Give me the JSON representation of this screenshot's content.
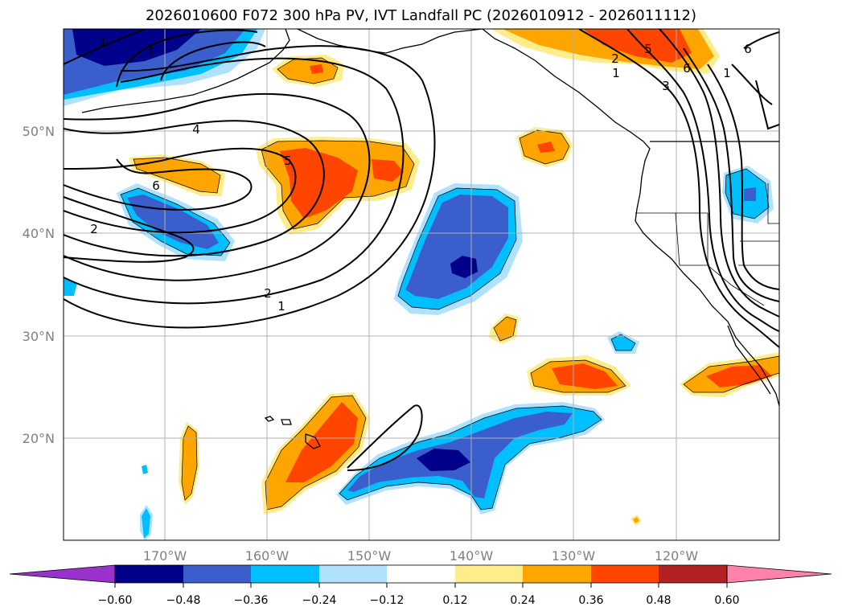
{
  "title": "2026010600 F072 300 hPa PV, IVT Landfall PC (2026010912 - 2026011112)",
  "map": {
    "projection": "PlateCarree",
    "lon_range": [
      -180,
      -110
    ],
    "lat_range": [
      10,
      60
    ],
    "lon_ticks": [
      {
        "value": -170,
        "label": "170°W"
      },
      {
        "value": -160,
        "label": "160°W"
      },
      {
        "value": -150,
        "label": "150°W"
      },
      {
        "value": -140,
        "label": "140°W"
      },
      {
        "value": -130,
        "label": "130°W"
      },
      {
        "value": -120,
        "label": "120°W"
      }
    ],
    "lat_ticks": [
      {
        "value": 20,
        "label": "20°N"
      },
      {
        "value": 30,
        "label": "30°N"
      },
      {
        "value": 40,
        "label": "40°N"
      },
      {
        "value": 50,
        "label": "50°N"
      }
    ],
    "grid": true,
    "coastlines": true,
    "state_borders": true
  },
  "colorbar": {
    "orientation": "horizontal",
    "extend": "both",
    "boundaries": [
      -0.72,
      -0.6,
      -0.48,
      -0.36,
      -0.24,
      -0.12,
      0.12,
      0.24,
      0.36,
      0.48,
      0.6,
      0.72
    ],
    "colors": [
      "#9932cc",
      "#00008b",
      "#3a5fcd",
      "#00bfff",
      "#b0e2ff",
      "#ffffff",
      "#ffec8b",
      "#ffa500",
      "#ff4500",
      "#b22222",
      "#ff82ab"
    ],
    "tick_labels": [
      "−0.60",
      "−0.48",
      "−0.36",
      "−0.24",
      "−0.12",
      "0.12",
      "0.24",
      "0.36",
      "0.48",
      "0.60"
    ]
  },
  "pv_contours": {
    "color": "#000000",
    "labels": [
      "1",
      "2",
      "4",
      "5",
      "6",
      "1",
      "3",
      "5",
      "6",
      "6",
      "1",
      "2",
      "1",
      "3",
      "2"
    ]
  }
}
